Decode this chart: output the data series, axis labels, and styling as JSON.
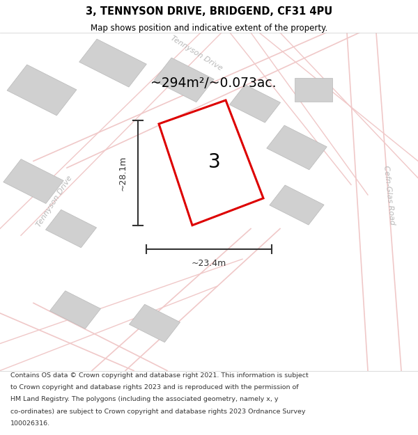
{
  "title_line1": "3, TENNYSON DRIVE, BRIDGEND, CF31 4PU",
  "title_line2": "Map shows position and indicative extent of the property.",
  "area_text": "~294m²/~0.073ac.",
  "plot_number": "3",
  "width_label": "~23.4m",
  "height_label": "~28.1m",
  "footer_lines": [
    "Contains OS data © Crown copyright and database right 2021. This information is subject",
    "to Crown copyright and database rights 2023 and is reproduced with the permission of",
    "HM Land Registry. The polygons (including the associated geometry, namely x, y",
    "co-ordinates) are subject to Crown copyright and database rights 2023 Ordnance Survey",
    "100026316."
  ],
  "bg_color": "#f2f2f2",
  "road_color_light": "#f0c8c8",
  "building_color": "#d0d0d0",
  "building_edge": "#b8b8b8",
  "plot_edge_color": "#dd0000",
  "plot_fill_color": "#ffffff",
  "street_label_color": "#b8b8b8",
  "dim_color": "#333333",
  "title_color": "#000000",
  "footer_color": "#333333"
}
